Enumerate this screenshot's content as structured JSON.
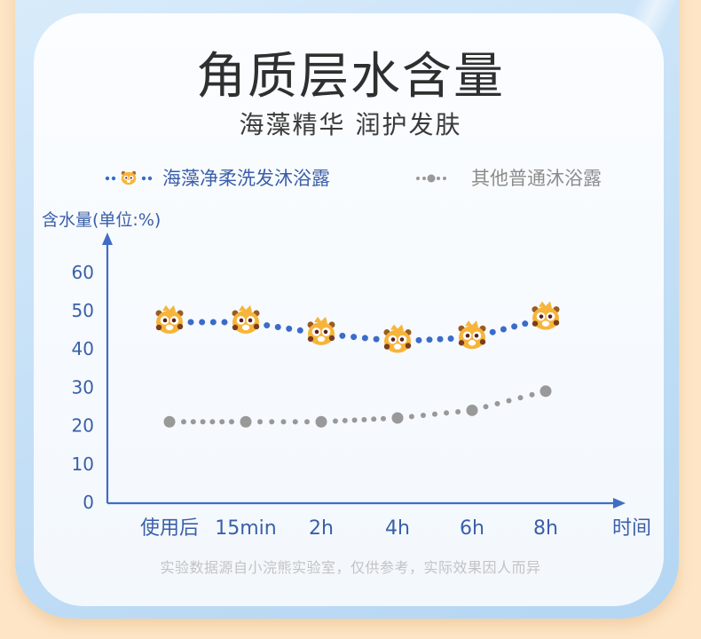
{
  "page": {
    "title": "角质层水含量",
    "subtitle": "海藻精华 润护发肤",
    "footnote": "实验数据源自小浣熊实验室，仅供参考，实际效果因人而异",
    "colors": {
      "background": "#fde5c6",
      "frame": "#b9d8f4",
      "card": "#f5f9fd",
      "axis": "#3f6ec4",
      "series_primary": "#3a6cc8",
      "series_secondary": "#999999",
      "marker_icon": "#f6b53a"
    }
  },
  "legend": [
    {
      "label": "海藻净柔洗发沐浴露",
      "marker": "raccoon-icon",
      "color": "#3a6cc8"
    },
    {
      "label": "其他普通沐浴露",
      "marker": "gray-dot",
      "color": "#999999"
    }
  ],
  "chart_data": {
    "type": "line",
    "title": "角质层水含量",
    "subtitle": "海藻精华 润护发肤",
    "xlabel": "时间",
    "ylabel": "含水量(单位:%)",
    "categories": [
      "使用后",
      "15min",
      "2h",
      "4h",
      "6h",
      "8h"
    ],
    "yticks": [
      0,
      10,
      20,
      30,
      40,
      50,
      60
    ],
    "ylim": [
      0,
      60
    ],
    "grid": false,
    "legend_position": "top",
    "series": [
      {
        "name": "海藻净柔洗发沐浴露",
        "values": [
          47,
          47,
          44,
          42,
          43,
          48
        ],
        "color": "#3a6cc8",
        "marker": "raccoon-icon",
        "line_style": "dotted"
      },
      {
        "name": "其他普通沐浴露",
        "values": [
          21,
          21,
          21,
          22,
          24,
          29
        ],
        "color": "#999999",
        "marker": "circle",
        "line_style": "dotted"
      }
    ],
    "annotations": [
      "实验数据源自小浣熊实验室，仅供参考，实际效果因人而异"
    ]
  }
}
